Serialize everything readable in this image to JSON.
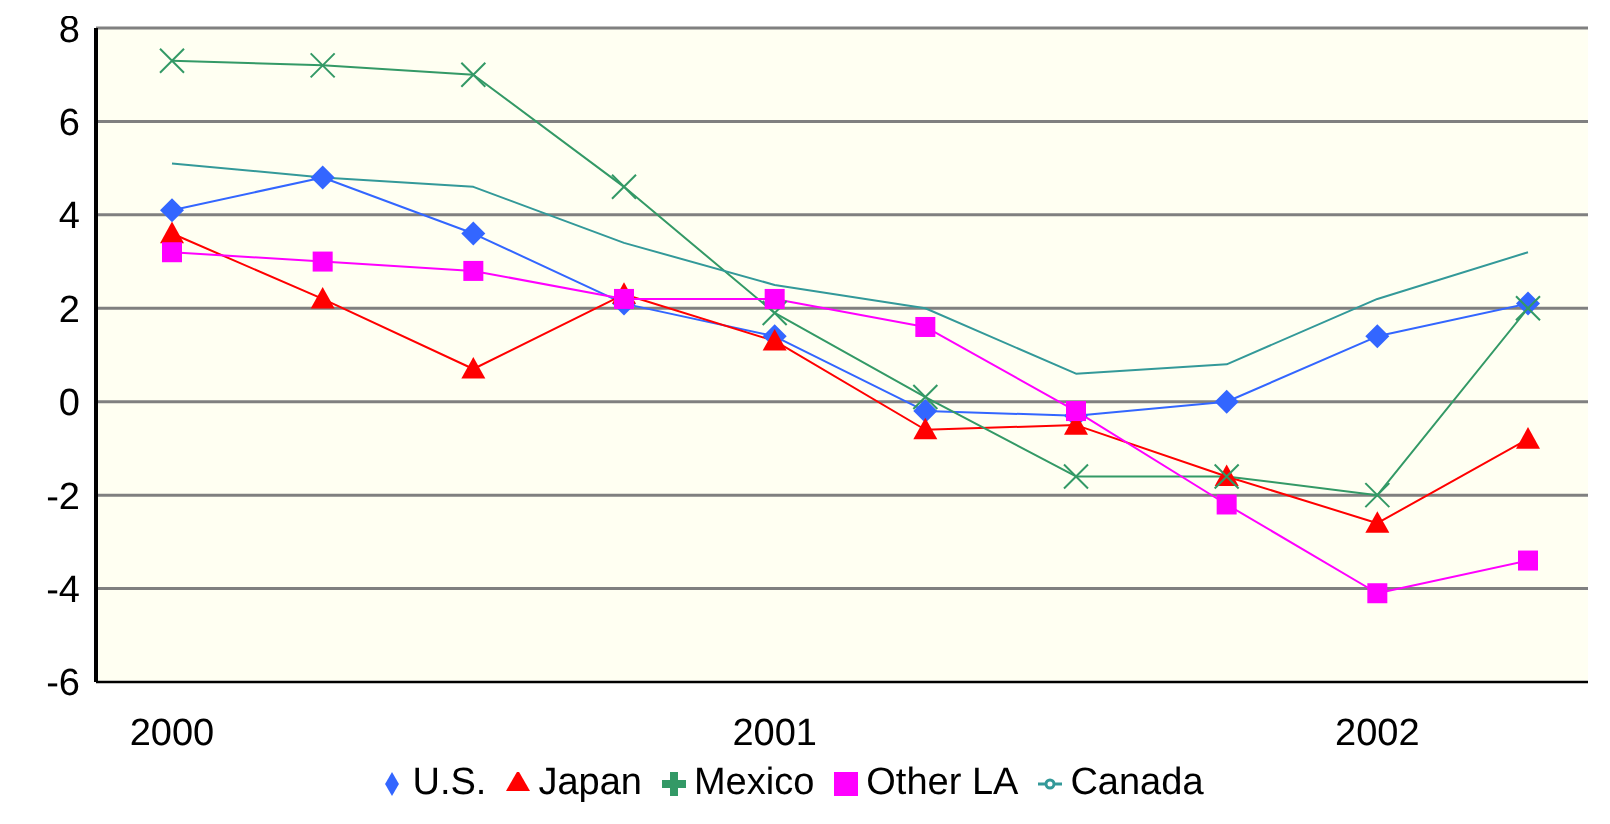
{
  "chart_data": {
    "type": "line",
    "categories": [
      "2000",
      null,
      null,
      null,
      "2001",
      null,
      null,
      null,
      "2002",
      null
    ],
    "series": [
      {
        "name": "U.S.",
        "color": "#3366ff",
        "marker": "diamond",
        "values": [
          4.1,
          4.8,
          3.6,
          2.1,
          1.4,
          -0.2,
          -0.3,
          0.0,
          1.4,
          2.1
        ]
      },
      {
        "name": "Japan",
        "color": "#ff0000",
        "marker": "triangle",
        "values": [
          3.6,
          2.2,
          0.7,
          2.3,
          1.3,
          -0.6,
          -0.5,
          -1.6,
          -2.6,
          -0.8
        ]
      },
      {
        "name": "Mexico",
        "color": "#339966",
        "marker": "cross",
        "values": [
          7.3,
          7.2,
          7.0,
          4.6,
          1.9,
          0.1,
          -1.6,
          -1.6,
          -2.0,
          2.0
        ]
      },
      {
        "name": "Other LA",
        "color": "#ff00ff",
        "marker": "square",
        "values": [
          3.2,
          3.0,
          2.8,
          2.2,
          2.2,
          1.6,
          -0.2,
          -2.2,
          -4.1,
          -3.4
        ]
      },
      {
        "name": "Canada",
        "color": "#339999",
        "marker": "none",
        "values": [
          5.1,
          4.8,
          4.6,
          3.4,
          2.5,
          2.0,
          0.6,
          0.8,
          2.2,
          3.2
        ]
      }
    ],
    "ylim": [
      -6,
      8
    ],
    "yticks": [
      -6,
      -4,
      -2,
      0,
      2,
      4,
      6,
      8
    ],
    "grid": "y",
    "legend": "bottom"
  }
}
